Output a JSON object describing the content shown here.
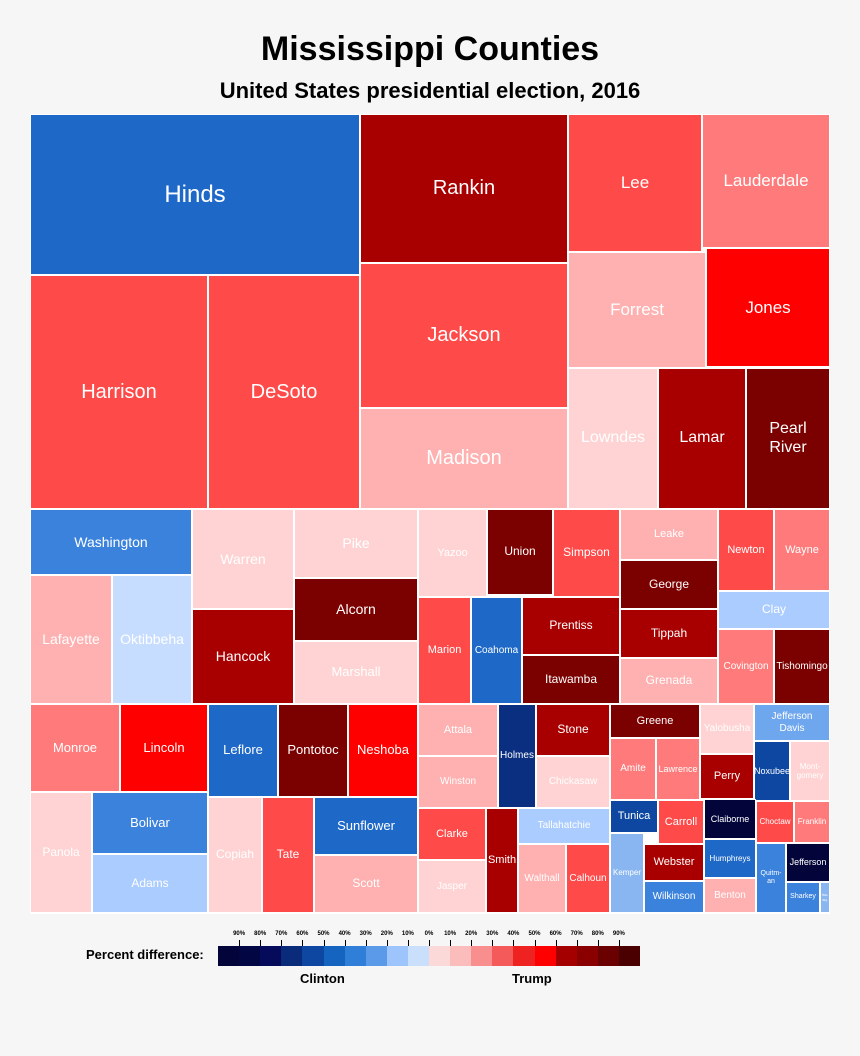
{
  "title": "Mississippi Counties",
  "subtitle": "United States presidential election, 2016",
  "legend": {
    "label": "Percent difference:",
    "clinton_label": "Clinton",
    "trump_label": "Trump",
    "clinton_ticks": [
      "90%",
      "80%",
      "70%",
      "60%",
      "50%",
      "40%",
      "30%",
      "20%",
      "10%"
    ],
    "trump_ticks": [
      "0%",
      "10%",
      "20%",
      "30%",
      "40%",
      "50%",
      "60%",
      "70%",
      "80%",
      "90%"
    ],
    "clinton_colors": [
      "#03053a",
      "#020744",
      "#050a5a",
      "#0a2b7a",
      "#0d47a1",
      "#1565c0",
      "#2f7ed8",
      "#5b9ae8",
      "#9ec5fb",
      "#c9dffb"
    ],
    "trump_colors": [
      "#fcd9d9",
      "#fbbcbc",
      "#f88e8e",
      "#f45a5a",
      "#ef2222",
      "#ff0000",
      "#a50000",
      "#8a0000",
      "#6a0000",
      "#4a0000"
    ]
  },
  "chart_data": {
    "type": "treemap",
    "title": "Mississippi Counties",
    "subtitle": "United States presidential election, 2016",
    "color_scale": "Percent difference (Clinton blue / Trump red)",
    "cells": [
      {
        "name": "Hinds",
        "color": "#1e68c8",
        "font": 24
      },
      {
        "name": "Rankin",
        "color": "#a80000",
        "font": 20
      },
      {
        "name": "Lee",
        "color": "#ff4a4a",
        "font": 17
      },
      {
        "name": "Lauderdale",
        "color": "#ff7b7b",
        "font": 17
      },
      {
        "name": "Harrison",
        "color": "#ff4a4a",
        "font": 20
      },
      {
        "name": "DeSoto",
        "color": "#ff4a4a",
        "font": 20
      },
      {
        "name": "Jackson",
        "color": "#ff4a4a",
        "font": 20
      },
      {
        "name": "Forrest",
        "color": "#ffb0b0",
        "font": 17
      },
      {
        "name": "Jones",
        "color": "#ff0000",
        "font": 17
      },
      {
        "name": "Madison",
        "color": "#ffb0b0",
        "font": 20
      },
      {
        "name": "Lowndes",
        "color": "#ffd3d3",
        "font": 16
      },
      {
        "name": "Lamar",
        "color": "#a80000",
        "font": 16
      },
      {
        "name": "Pearl\nRiver",
        "color": "#7b0000",
        "font": 16
      },
      {
        "name": "Washington",
        "color": "#3b82dd",
        "font": 14
      },
      {
        "name": "Warren",
        "color": "#ffd3d3",
        "font": 14
      },
      {
        "name": "Pike",
        "color": "#ffd3d3",
        "font": 14
      },
      {
        "name": "Yazoo",
        "color": "#ffd3d3",
        "font": 11
      },
      {
        "name": "Union",
        "color": "#7b0000",
        "font": 12
      },
      {
        "name": "Simpson",
        "color": "#ff4a4a",
        "font": 12
      },
      {
        "name": "Leake",
        "color": "#ffb0b0",
        "font": 11
      },
      {
        "name": "Newton",
        "color": "#ff4a4a",
        "font": 11
      },
      {
        "name": "Wayne",
        "color": "#ff7b7b",
        "font": 11
      },
      {
        "name": "George",
        "color": "#7b0000",
        "font": 12
      },
      {
        "name": "Clay",
        "color": "#aaccff",
        "font": 12
      },
      {
        "name": "Lafayette",
        "color": "#ffb0b0",
        "font": 14
      },
      {
        "name": "Oktibbeha",
        "color": "#c7ddff",
        "font": 14
      },
      {
        "name": "Alcorn",
        "color": "#7b0000",
        "font": 14
      },
      {
        "name": "Hancock",
        "color": "#a80000",
        "font": 14
      },
      {
        "name": "Marshall",
        "color": "#ffd3d3",
        "font": 13
      },
      {
        "name": "Marion",
        "color": "#ff4a4a",
        "font": 11
      },
      {
        "name": "Coahoma",
        "color": "#1e68c8",
        "font": 10
      },
      {
        "name": "Prentiss",
        "color": "#a80000",
        "font": 12
      },
      {
        "name": "Tippah",
        "color": "#a80000",
        "font": 12
      },
      {
        "name": "Itawamba",
        "color": "#7b0000",
        "font": 12
      },
      {
        "name": "Covington",
        "color": "#ff7b7b",
        "font": 10
      },
      {
        "name": "Tishomingo",
        "color": "#7b0000",
        "font": 10
      },
      {
        "name": "Grenada",
        "color": "#ffb0b0",
        "font": 12
      },
      {
        "name": "Monroe",
        "color": "#ff7b7b",
        "font": 13
      },
      {
        "name": "Lincoln",
        "color": "#ff0000",
        "font": 13
      },
      {
        "name": "Leflore",
        "color": "#1e68c8",
        "font": 13
      },
      {
        "name": "Pontotoc",
        "color": "#7b0000",
        "font": 13
      },
      {
        "name": "Neshoba",
        "color": "#ff0000",
        "font": 13
      },
      {
        "name": "Attala",
        "color": "#ffb0b0",
        "font": 11
      },
      {
        "name": "Holmes",
        "color": "#0b2f80",
        "font": 10
      },
      {
        "name": "Stone",
        "color": "#a80000",
        "font": 12
      },
      {
        "name": "Greene",
        "color": "#7b0000",
        "font": 11
      },
      {
        "name": "Yalobusha",
        "color": "#ffd3d3",
        "font": 10
      },
      {
        "name": "Jefferson\nDavis",
        "color": "#6fa7ee",
        "font": 10
      },
      {
        "name": "Winston",
        "color": "#ffb0b0",
        "font": 10
      },
      {
        "name": "Chickasaw",
        "color": "#ffd3d3",
        "font": 10
      },
      {
        "name": "Amite",
        "color": "#ff7b7b",
        "font": 10
      },
      {
        "name": "Lawrence",
        "color": "#ff7b7b",
        "font": 9
      },
      {
        "name": "Perry",
        "color": "#a80000",
        "font": 11
      },
      {
        "name": "Noxubee",
        "color": "#0d47a1",
        "font": 9
      },
      {
        "name": "Mont-\ngomery",
        "color": "#ffd3d3",
        "font": 8
      },
      {
        "name": "Panola",
        "color": "#ffd3d3",
        "font": 12
      },
      {
        "name": "Bolivar",
        "color": "#3b82dd",
        "font": 13
      },
      {
        "name": "Adams",
        "color": "#aaccff",
        "font": 12
      },
      {
        "name": "Copiah",
        "color": "#ffd3d3",
        "font": 12
      },
      {
        "name": "Tate",
        "color": "#ff4a4a",
        "font": 12
      },
      {
        "name": "Sunflower",
        "color": "#1e68c8",
        "font": 13
      },
      {
        "name": "Scott",
        "color": "#ffb0b0",
        "font": 12
      },
      {
        "name": "Clarke",
        "color": "#ff4a4a",
        "font": 11
      },
      {
        "name": "Jasper",
        "color": "#ffd3d3",
        "font": 10
      },
      {
        "name": "Smith",
        "color": "#a80000",
        "font": 11
      },
      {
        "name": "Tallahatchie",
        "color": "#aaccff",
        "font": 10
      },
      {
        "name": "Walthall",
        "color": "#ffb0b0",
        "font": 10
      },
      {
        "name": "Calhoun",
        "color": "#ff4a4a",
        "font": 10
      },
      {
        "name": "Tunica",
        "color": "#0d47a1",
        "font": 11
      },
      {
        "name": "Carroll",
        "color": "#ff4a4a",
        "font": 11
      },
      {
        "name": "Claiborne",
        "color": "#03053a",
        "font": 9
      },
      {
        "name": "Choctaw",
        "color": "#ff4a4a",
        "font": 8
      },
      {
        "name": "Franklin",
        "color": "#ff7b7b",
        "font": 8
      },
      {
        "name": "Humphreys",
        "color": "#1e68c8",
        "font": 8
      },
      {
        "name": "Kemper",
        "color": "#89b6f0",
        "font": 8
      },
      {
        "name": "Webster",
        "color": "#a80000",
        "font": 11
      },
      {
        "name": "Wilkinson",
        "color": "#3b82dd",
        "font": 10
      },
      {
        "name": "Benton",
        "color": "#ffb0b0",
        "font": 10
      },
      {
        "name": "Quitm-\nan",
        "color": "#3b82dd",
        "font": 7
      },
      {
        "name": "Jefferson",
        "color": "#03053a",
        "font": 9
      },
      {
        "name": "Sharkey",
        "color": "#3b82dd",
        "font": 7
      },
      {
        "name": "Iss-\naq.",
        "color": "#89b6f0",
        "font": 4
      }
    ]
  }
}
